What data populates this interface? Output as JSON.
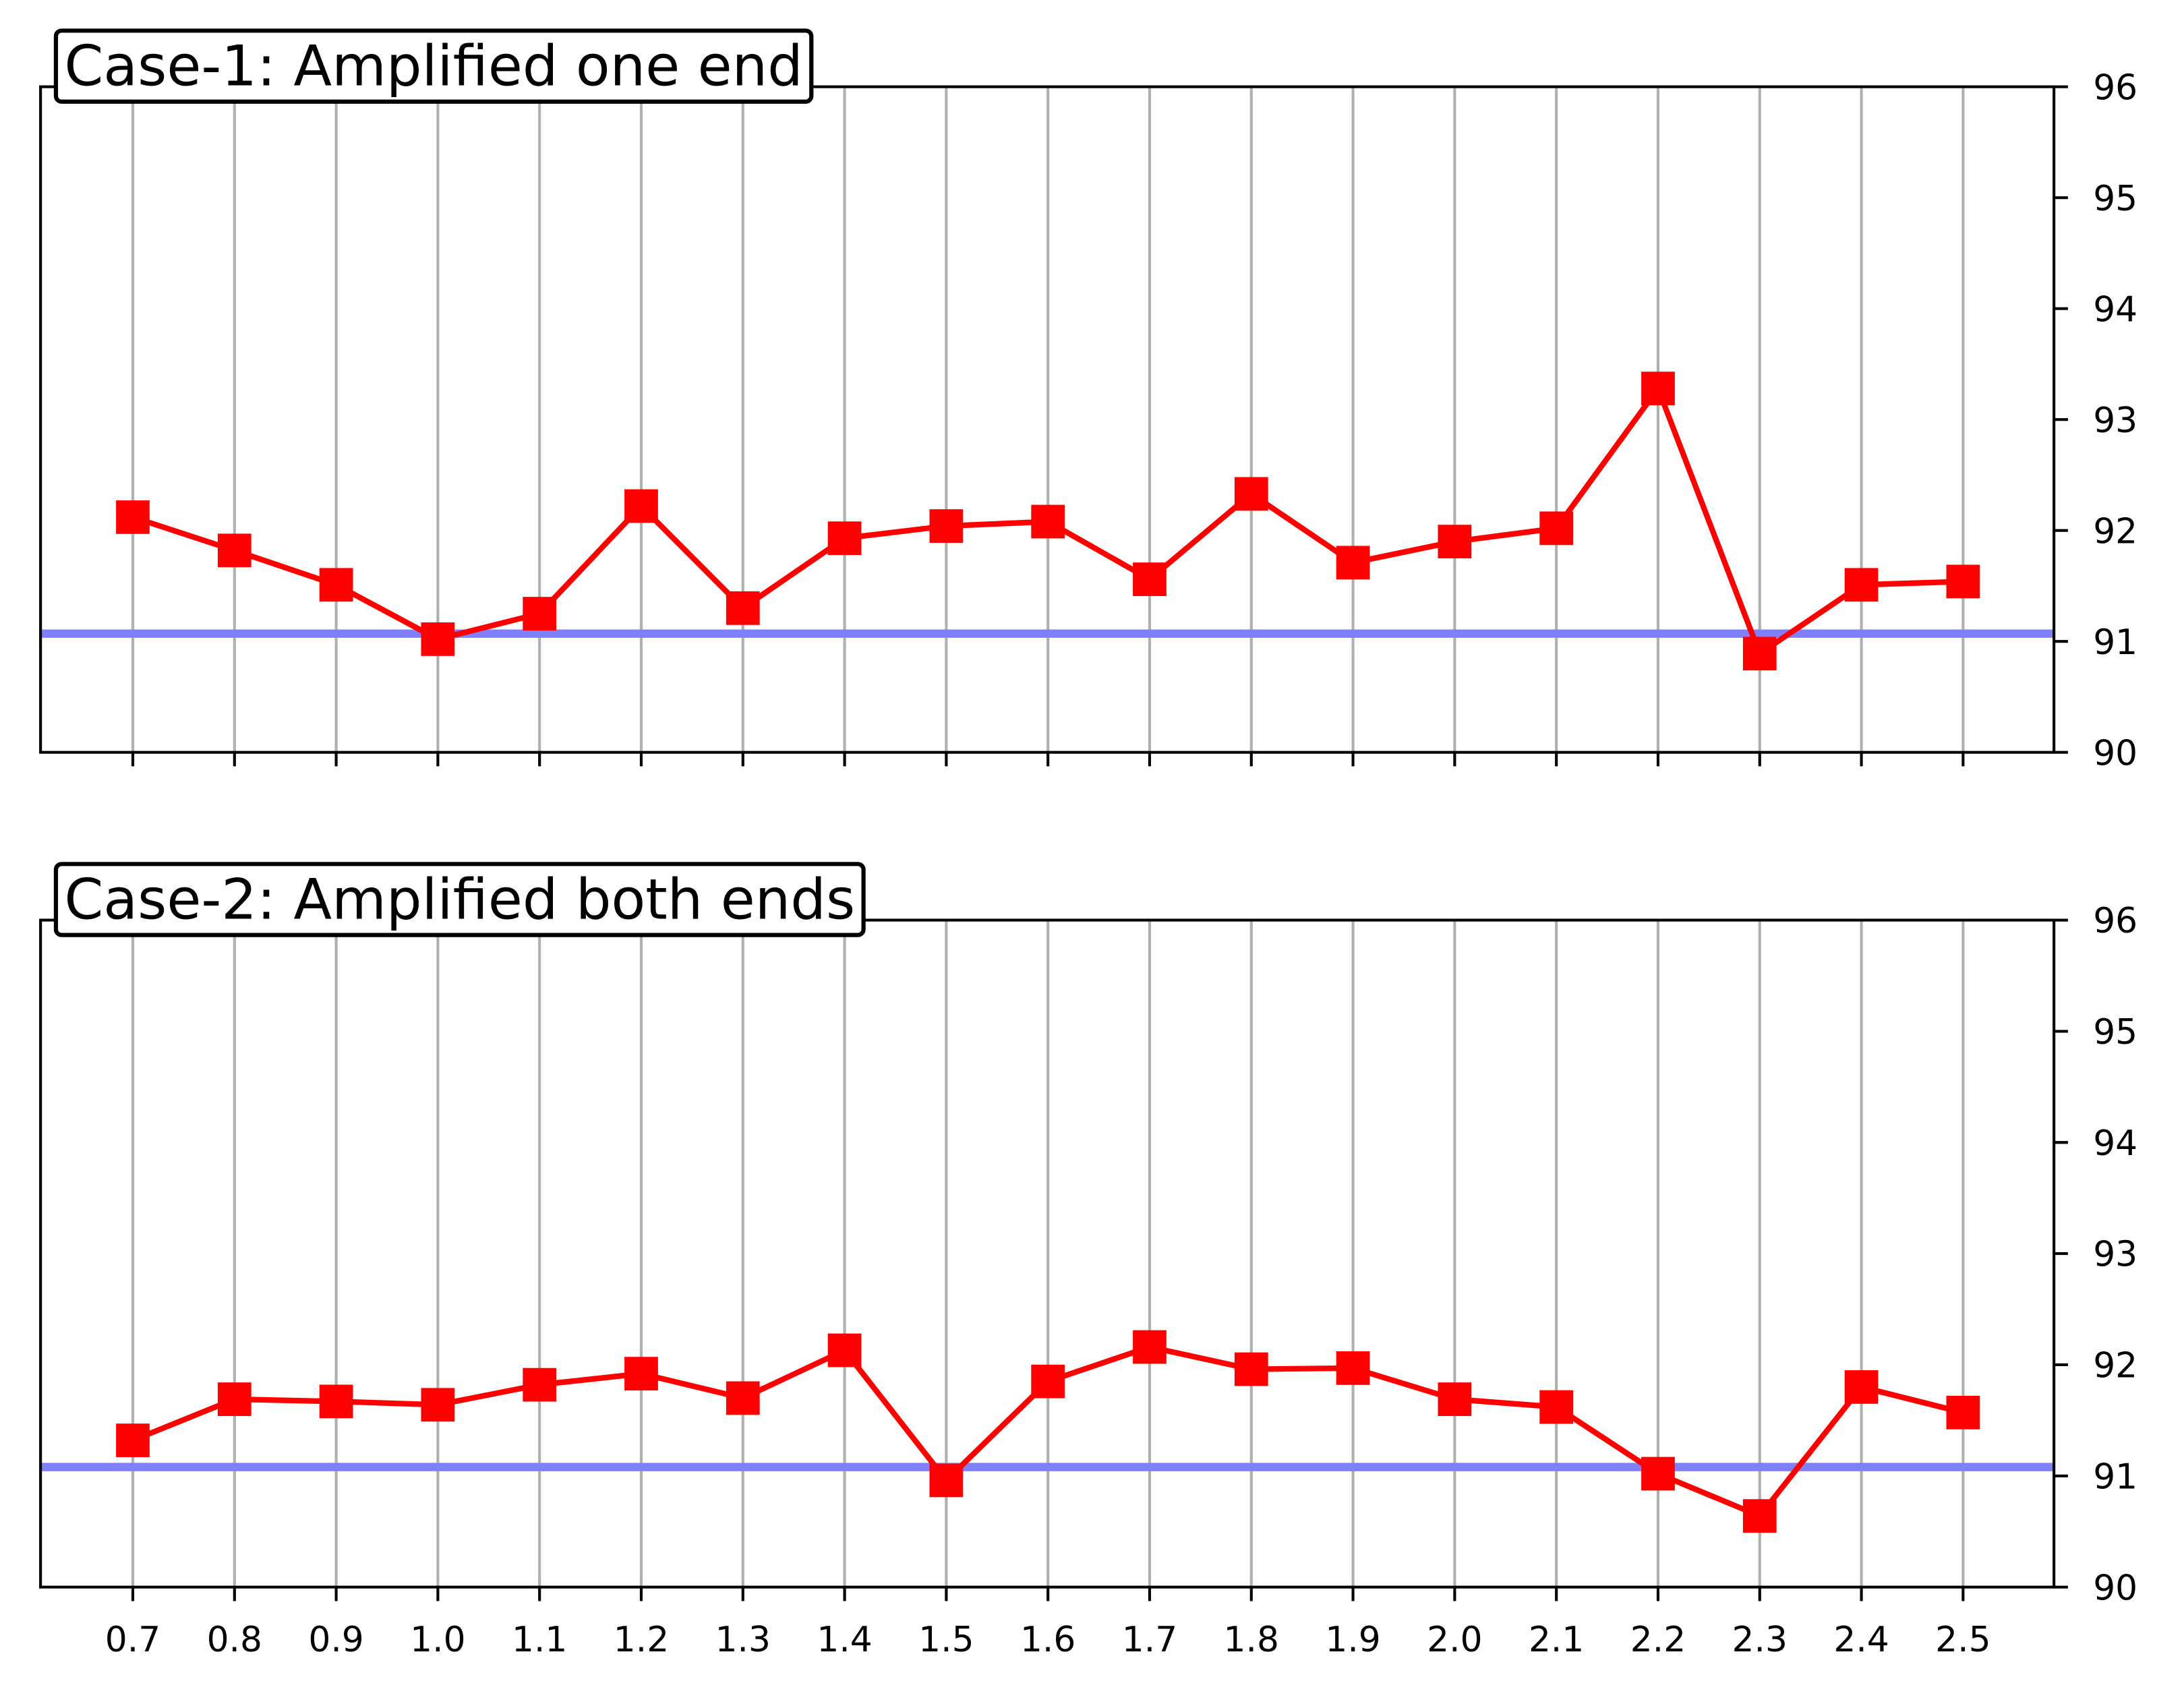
{
  "chart_data": [
    {
      "type": "line",
      "title": "Case-1: Amplified one end",
      "categories": [
        "0.7",
        "0.8",
        "0.9",
        "1.0",
        "1.1",
        "1.2",
        "1.3",
        "1.4",
        "1.5",
        "1.6",
        "1.7",
        "1.8",
        "1.9",
        "2.0",
        "2.1",
        "2.2",
        "2.3",
        "2.4",
        "2.5"
      ],
      "show_x_tick_labels": false,
      "series": [
        {
          "color": "#ff0000",
          "values": [
            92.12,
            91.82,
            91.51,
            91.02,
            91.25,
            92.22,
            91.3,
            91.93,
            92.04,
            92.08,
            91.56,
            92.33,
            91.71,
            91.9,
            92.02,
            93.28,
            90.89,
            91.51,
            91.54
          ]
        }
      ],
      "hline": {
        "value": 91.07,
        "color": "#8080ff"
      },
      "ylim": [
        90,
        96
      ],
      "yticks": [
        90,
        91,
        92,
        93,
        94,
        95,
        96
      ],
      "y_axis_side": "right",
      "grid": "x"
    },
    {
      "type": "line",
      "title": "Case-2: Amplified both ends",
      "categories": [
        "0.7",
        "0.8",
        "0.9",
        "1.0",
        "1.1",
        "1.2",
        "1.3",
        "1.4",
        "1.5",
        "1.6",
        "1.7",
        "1.8",
        "1.9",
        "2.0",
        "2.1",
        "2.2",
        "2.3",
        "2.4",
        "2.5"
      ],
      "show_x_tick_labels": true,
      "series": [
        {
          "color": "#ff0000",
          "values": [
            91.32,
            91.69,
            91.67,
            91.64,
            91.82,
            91.92,
            91.7,
            92.13,
            90.96,
            91.85,
            92.16,
            91.96,
            91.97,
            91.69,
            91.62,
            91.02,
            90.64,
            91.8,
            91.57
          ]
        }
      ],
      "hline": {
        "value": 91.08,
        "color": "#8080ff"
      },
      "ylim": [
        90,
        96
      ],
      "yticks": [
        90,
        91,
        92,
        93,
        94,
        95,
        96
      ],
      "y_axis_side": "right",
      "grid": "x"
    }
  ]
}
